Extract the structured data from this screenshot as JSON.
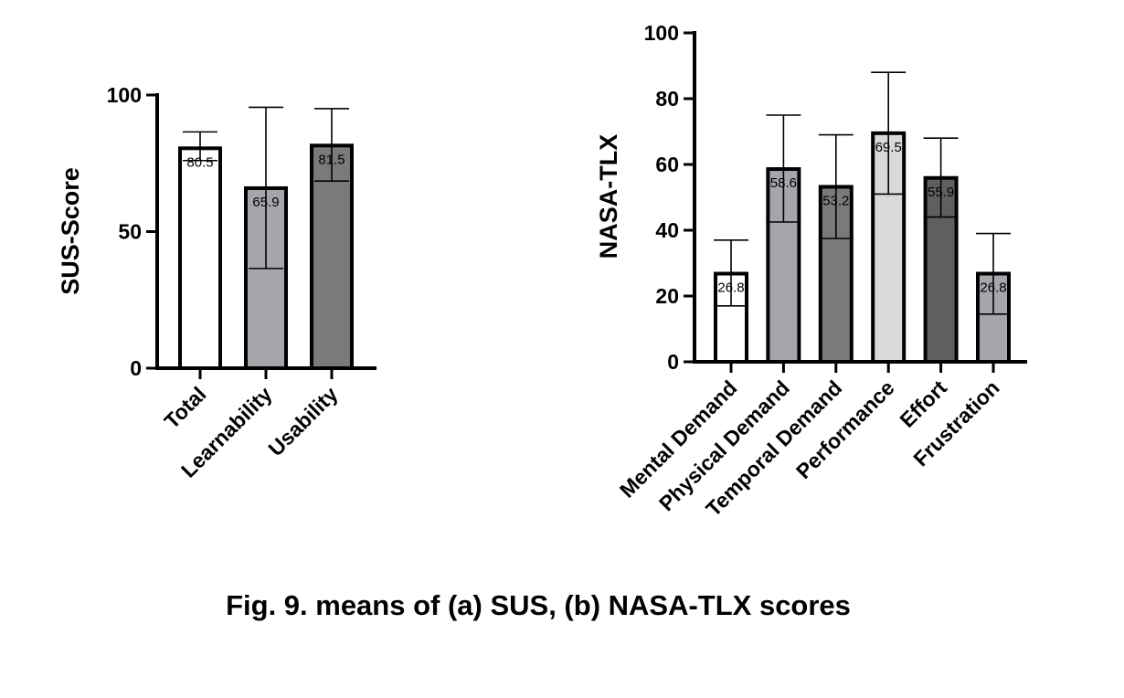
{
  "caption": "Fig. 9. means of (a) SUS, (b) NASA-TLX scores",
  "chart_data": [
    {
      "type": "bar",
      "title": "",
      "xlabel": "",
      "ylabel": "SUS-Score",
      "ylim": [
        0,
        100
      ],
      "yticks": [
        0,
        50,
        100
      ],
      "categories": [
        "Total",
        "Learnability",
        "Usability"
      ],
      "values": [
        80.5,
        65.9,
        81.5
      ],
      "data_labels": [
        "80.5",
        "65.9",
        "81.5"
      ],
      "error_upper": [
        86.5,
        95.5,
        95
      ],
      "error_lower": [
        76,
        36.5,
        68.5
      ],
      "colors": [
        "#ffffff",
        "#a5a5ab",
        "#7a7a7a"
      ]
    },
    {
      "type": "bar",
      "title": "",
      "xlabel": "",
      "ylabel": "NASA-TLX",
      "ylim": [
        0,
        100
      ],
      "yticks": [
        0,
        20,
        40,
        60,
        80,
        100
      ],
      "categories": [
        "Mental Demand",
        "Physical Demand",
        "Temporal Demand",
        "Performance",
        "Effort",
        "Frustration"
      ],
      "values": [
        26.8,
        58.6,
        53.2,
        69.5,
        55.9,
        26.8
      ],
      "data_labels": [
        "26.8",
        "58.6",
        "53.2",
        "69.5",
        "55.9",
        "26.8"
      ],
      "error_upper": [
        37,
        75,
        69,
        88,
        68,
        39
      ],
      "error_lower": [
        17,
        42.5,
        37.5,
        51,
        44,
        14.5
      ],
      "colors": [
        "#ffffff",
        "#a5a5ab",
        "#7a7a7a",
        "#d9d9d9",
        "#5f5f5f",
        "#a5a5ab"
      ]
    }
  ]
}
